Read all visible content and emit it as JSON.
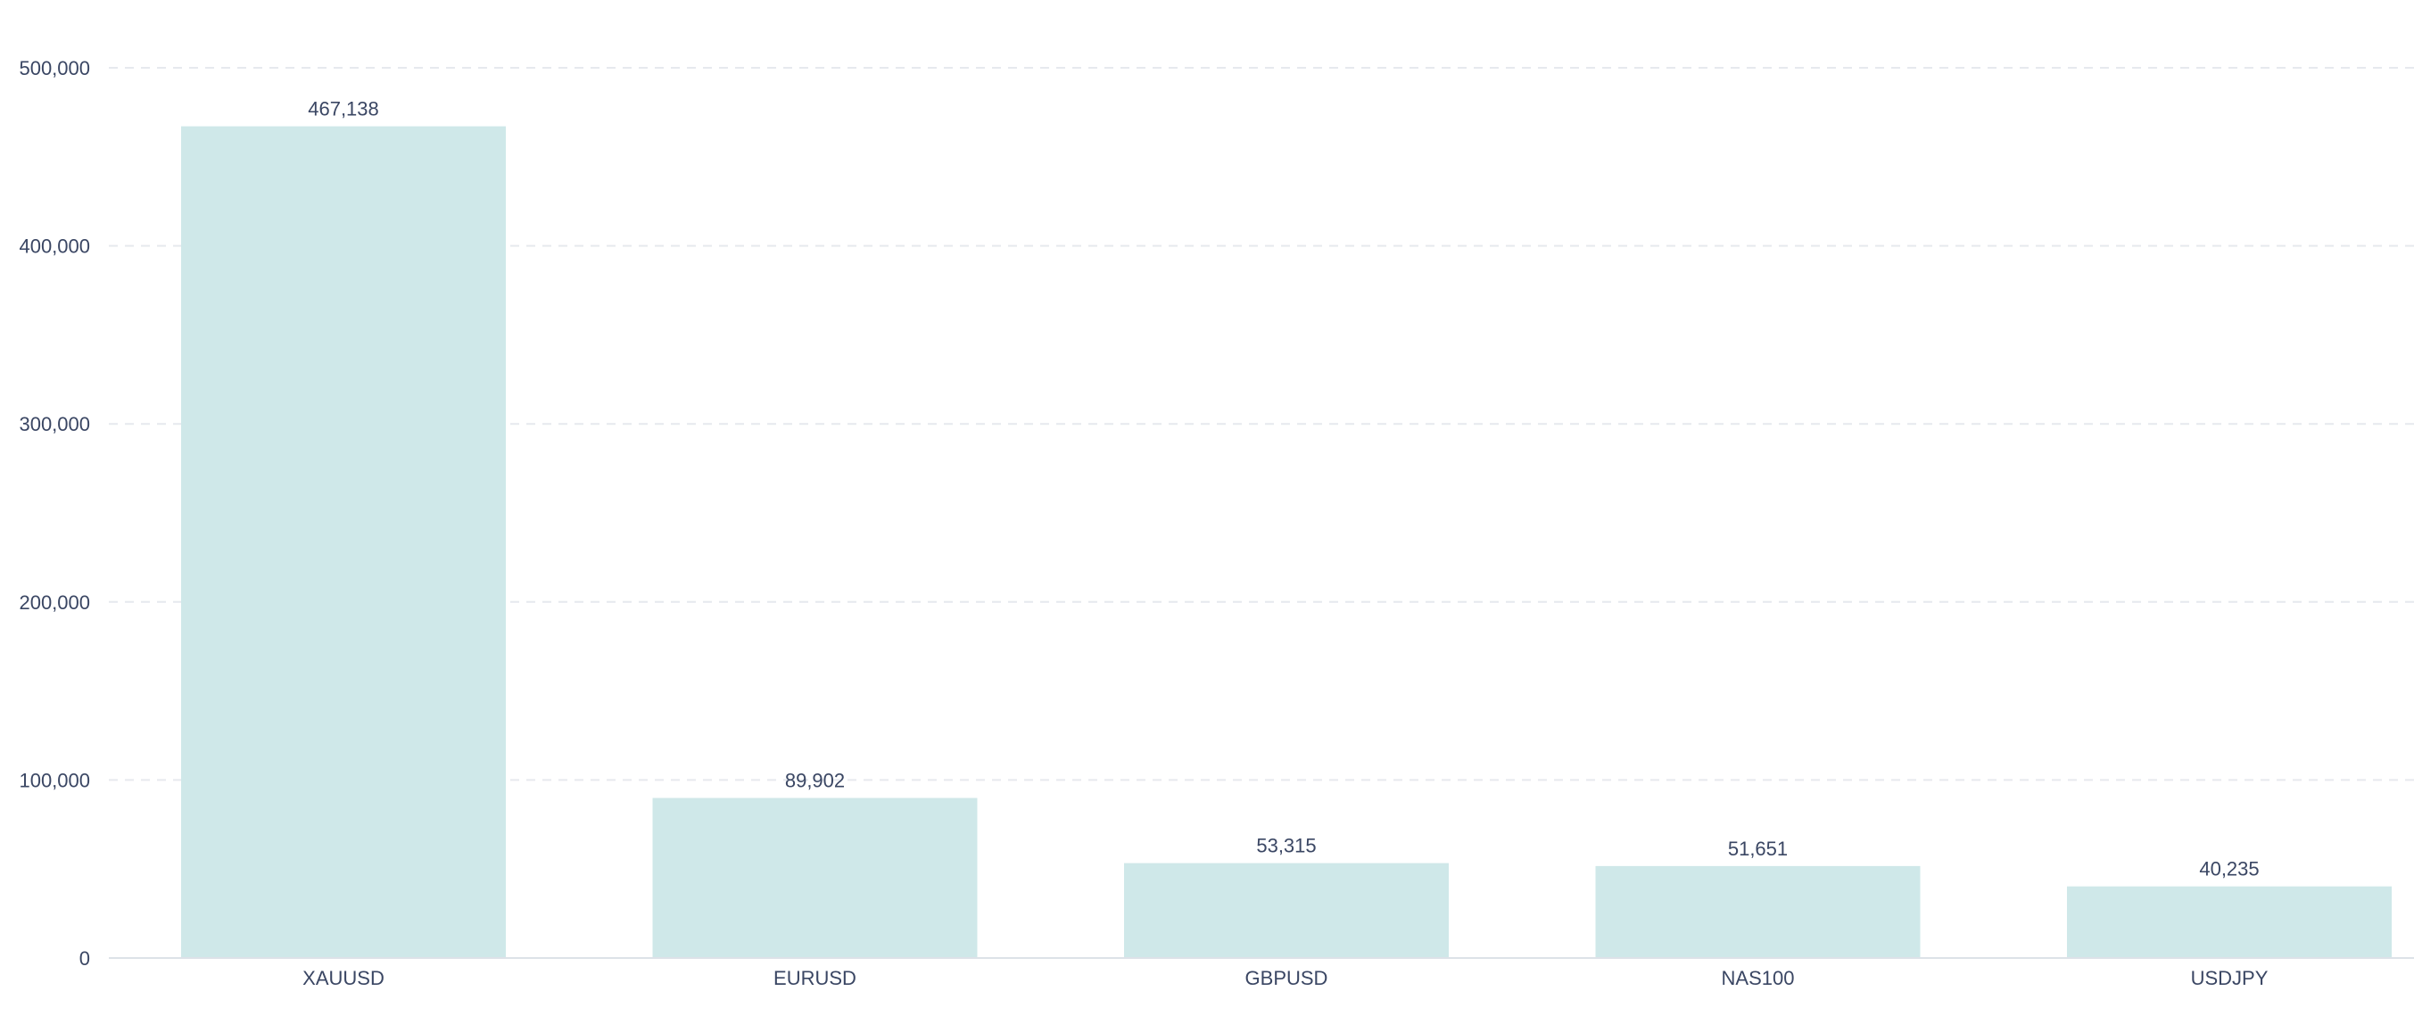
{
  "chart_data": {
    "type": "bar",
    "title": "",
    "xlabel": "",
    "ylabel": "",
    "categories": [
      "XAUUSD",
      "EURUSD",
      "GBPUSD",
      "NAS100",
      "USDJPY"
    ],
    "values": [
      467138,
      89902,
      53315,
      51651,
      40235
    ],
    "value_labels": [
      "467,138",
      "89,902",
      "53,315",
      "51,651",
      "40,235"
    ],
    "ylim": [
      0,
      500000
    ],
    "y_ticks": [
      0,
      100000,
      200000,
      300000,
      400000,
      500000
    ],
    "y_tick_labels": [
      "0",
      "100,000",
      "200,000",
      "300,000",
      "400,000",
      "500,000"
    ],
    "grid": true,
    "legend": "none"
  },
  "colors": {
    "bar": "#cfe8e9",
    "text": "#3a4663",
    "grid": "#e6e9ee",
    "axis": "#dde2e8"
  }
}
